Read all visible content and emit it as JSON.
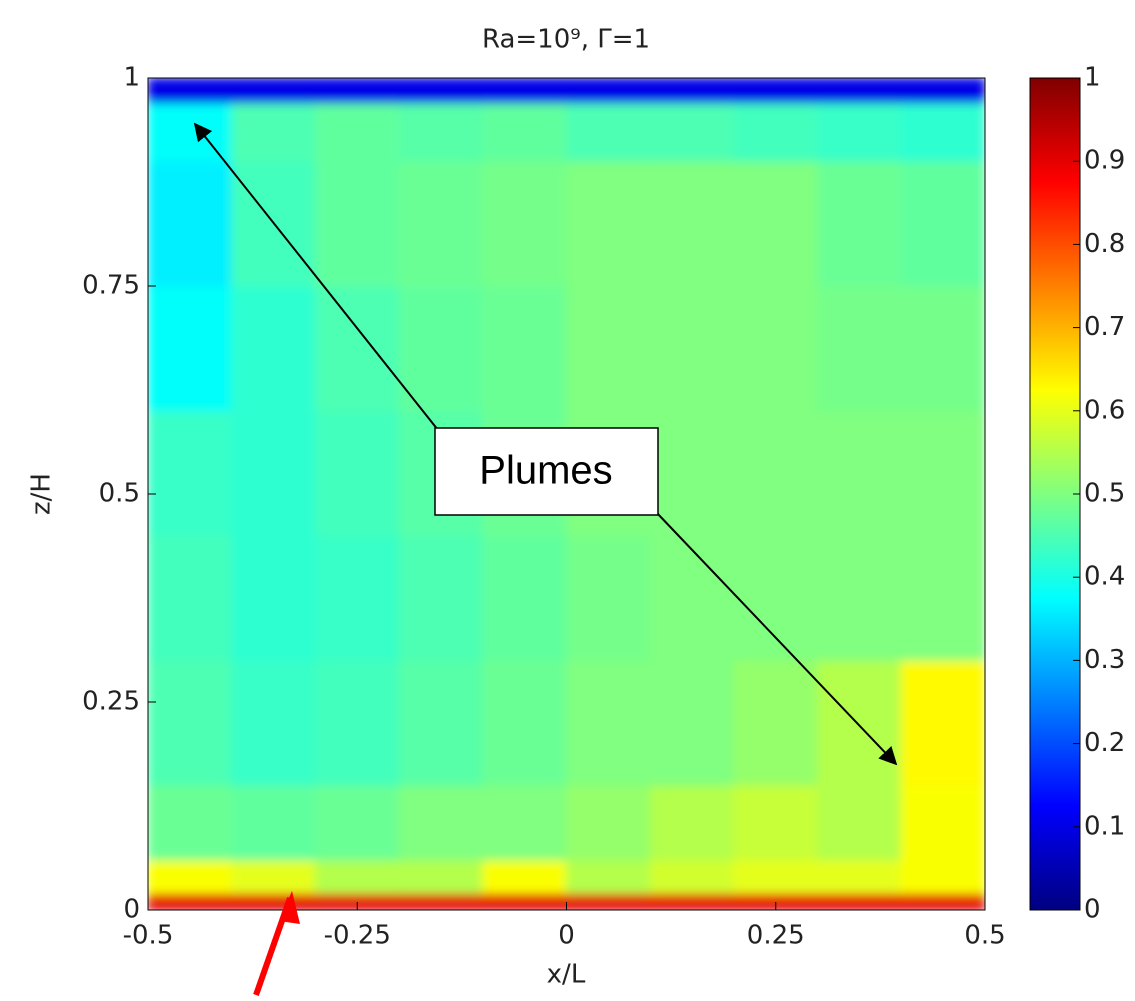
{
  "chart_data": {
    "type": "heatmap",
    "title": "Ra=10⁹, Γ=1",
    "x_label": "x/L",
    "y_label": "z/H",
    "colormap": "jet",
    "xbins": [
      -0.5,
      -0.4,
      -0.3,
      -0.2,
      -0.1,
      0,
      0.1,
      0.2,
      0.3,
      0.4,
      0.5
    ],
    "ybins": [
      0,
      0.02,
      0.06,
      0.15,
      0.3,
      0.45,
      0.6,
      0.75,
      0.9,
      0.97,
      1
    ],
    "values": [
      [
        0.9,
        0.9,
        0.9,
        0.9,
        0.9,
        0.9,
        0.9,
        0.9,
        0.9,
        0.9
      ],
      [
        0.62,
        0.6,
        0.55,
        0.55,
        0.62,
        0.55,
        0.58,
        0.6,
        0.6,
        0.62
      ],
      [
        0.48,
        0.47,
        0.48,
        0.5,
        0.5,
        0.52,
        0.55,
        0.57,
        0.55,
        0.62
      ],
      [
        0.45,
        0.43,
        0.44,
        0.46,
        0.48,
        0.5,
        0.5,
        0.52,
        0.55,
        0.63
      ],
      [
        0.44,
        0.42,
        0.43,
        0.45,
        0.47,
        0.49,
        0.5,
        0.5,
        0.5,
        0.5
      ],
      [
        0.43,
        0.42,
        0.44,
        0.46,
        0.48,
        0.5,
        0.5,
        0.5,
        0.5,
        0.5
      ],
      [
        0.38,
        0.42,
        0.45,
        0.47,
        0.48,
        0.5,
        0.5,
        0.5,
        0.49,
        0.49
      ],
      [
        0.36,
        0.44,
        0.47,
        0.48,
        0.49,
        0.5,
        0.5,
        0.5,
        0.48,
        0.47
      ],
      [
        0.38,
        0.45,
        0.47,
        0.46,
        0.47,
        0.45,
        0.45,
        0.44,
        0.43,
        0.42
      ],
      [
        0.1,
        0.1,
        0.1,
        0.1,
        0.1,
        0.1,
        0.1,
        0.1,
        0.1,
        0.1
      ]
    ],
    "xlim": [
      -0.5,
      0.5
    ],
    "ylim": [
      0,
      1
    ],
    "xticks": [
      -0.5,
      -0.25,
      0,
      0.25,
      0.5
    ],
    "yticks": [
      0,
      0.25,
      0.5,
      0.75,
      1
    ],
    "clim": [
      0,
      1
    ],
    "cticks": [
      0,
      0.1,
      0.2,
      0.3,
      0.4,
      0.5,
      0.6,
      0.7,
      0.8,
      0.9,
      1
    ],
    "annotation": "Plumes"
  }
}
